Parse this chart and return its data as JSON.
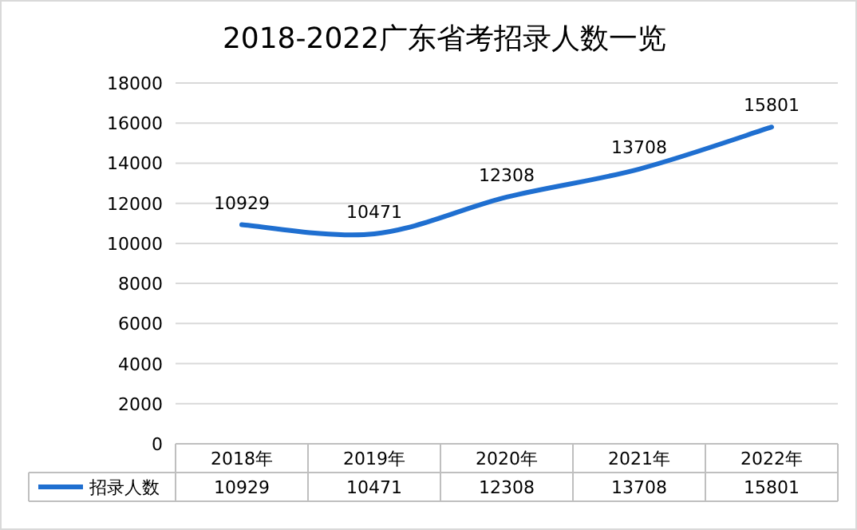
{
  "chart_data": {
    "type": "line",
    "title": "2018-2022广东省考招录人数一览",
    "categories": [
      "2018年",
      "2019年",
      "2020年",
      "2021年",
      "2022年"
    ],
    "series": [
      {
        "name": "招录人数",
        "color": "#1f6fd0",
        "values": [
          10929,
          10471,
          12308,
          13708,
          15801
        ]
      }
    ],
    "ylim": [
      0,
      18000
    ],
    "yticks": [
      0,
      2000,
      4000,
      6000,
      8000,
      10000,
      12000,
      14000,
      16000,
      18000
    ],
    "grid": "y",
    "legend": "bottom",
    "data_labels": true,
    "annotations": [
      "10929",
      "10471",
      "12308",
      "13708",
      "15801"
    ]
  }
}
